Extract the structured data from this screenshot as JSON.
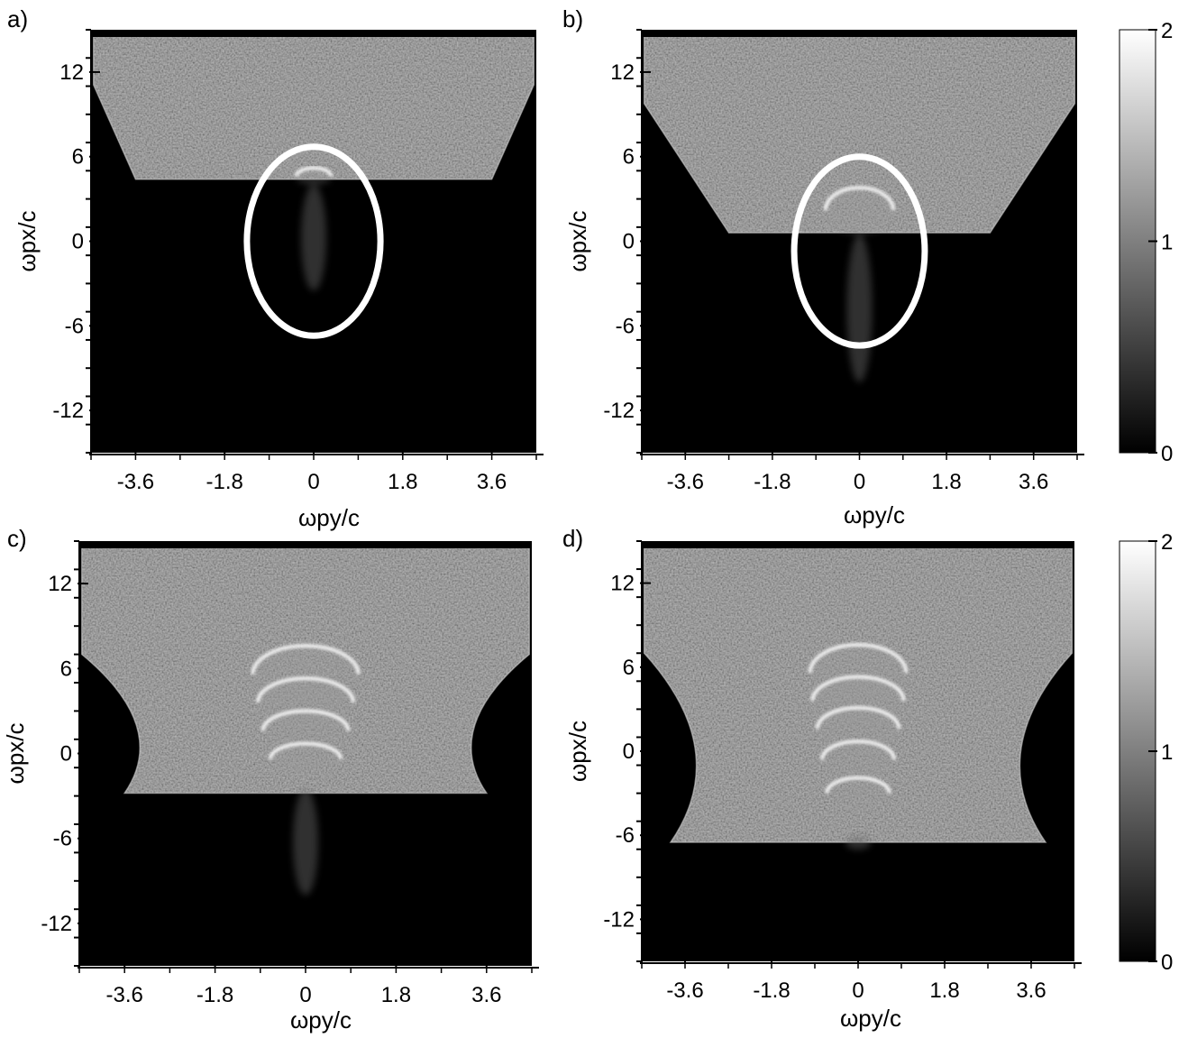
{
  "figure": {
    "colorbar_ticks": [
      "2",
      "1",
      "0"
    ]
  },
  "chart_data": [
    {
      "type": "heatmap",
      "panel_label": "a)",
      "xlabel": "ωpy/c",
      "ylabel": "ωpx/c",
      "x_ticks": [
        -3.6,
        -1.8,
        0,
        1.8,
        3.6
      ],
      "x_tick_labels": [
        "-3.6",
        "-1.8",
        "0",
        "1.8",
        "3.6"
      ],
      "y_ticks": [
        12,
        6,
        0,
        -6,
        -12
      ],
      "y_tick_labels": [
        "12",
        "6",
        "0",
        "-6",
        "-12"
      ],
      "xlim": [
        -4.5,
        4.5
      ],
      "ylim": [
        -15,
        15
      ],
      "colorbar": {
        "range": [
          0,
          2
        ],
        "ticks": [
          0,
          1,
          2
        ],
        "colormap": "gray"
      },
      "plasma_region": {
        "top": 14.7,
        "bottom": 4.4,
        "profile": "trapezoid",
        "half_width_top": 4.45,
        "half_width_bottom": 3.6
      },
      "rings": [
        {
          "y": 0,
          "x": 4.6,
          "ry": 0.35,
          "rx": 0.6
        }
      ],
      "wake_tail": {
        "from": 4.0,
        "to": -3.5
      },
      "ellipse_highlight": {
        "center": [
          0,
          0
        ],
        "half_width_y": 1.35,
        "half_height_x": 6.7
      }
    },
    {
      "type": "heatmap",
      "panel_label": "b)",
      "xlabel": "ωpy/c",
      "ylabel": "ωpx/c",
      "x_ticks": [
        -3.6,
        -1.8,
        0,
        1.8,
        3.6
      ],
      "x_tick_labels": [
        "-3.6",
        "-1.8",
        "0",
        "1.8",
        "3.6"
      ],
      "y_ticks": [
        12,
        6,
        0,
        -6,
        -12
      ],
      "y_tick_labels": [
        "12",
        "6",
        "0",
        "-6",
        "-12"
      ],
      "xlim": [
        -4.5,
        4.5
      ],
      "ylim": [
        -15,
        15
      ],
      "colorbar": {
        "range": [
          0,
          2
        ],
        "ticks": [
          0,
          1,
          2
        ],
        "colormap": "gray"
      },
      "plasma_region": {
        "top": 14.7,
        "bottom": 0.6,
        "profile": "trapezoid",
        "half_width_top": 4.45,
        "half_width_bottom": 2.7
      },
      "rings": [
        {
          "y": 0,
          "x": 2.2,
          "ry": 0.7,
          "rx": 1.6
        }
      ],
      "wake_tail": {
        "from": 0.5,
        "to": -10.0
      },
      "ellipse_highlight": {
        "center": [
          0,
          -0.7
        ],
        "half_width_y": 1.35,
        "half_height_x": 6.7
      }
    },
    {
      "type": "heatmap",
      "panel_label": "c)",
      "xlabel": "ωpy/c",
      "ylabel": "ωpx/c",
      "x_ticks": [
        -3.6,
        -1.8,
        0,
        1.8,
        3.6
      ],
      "x_tick_labels": [
        "-3.6",
        "-1.8",
        "0",
        "1.8",
        "3.6"
      ],
      "y_ticks": [
        12,
        6,
        0,
        -6,
        -12
      ],
      "y_tick_labels": [
        "12",
        "6",
        "0",
        "-6",
        "-12"
      ],
      "xlim": [
        -4.5,
        4.5
      ],
      "ylim": [
        -15,
        15
      ],
      "colorbar": {
        "range": [
          0,
          2
        ],
        "ticks": [
          0,
          1,
          2
        ],
        "colormap": "gray"
      },
      "plasma_region": {
        "top": 14.7,
        "bottom": -2.8,
        "profile": "waist",
        "half_width_top": 4.45,
        "half_width_waist": 2.9,
        "half_width_bottom": 3.6
      },
      "rings": [
        {
          "y": 0,
          "x": 5.6,
          "ry": 1.05,
          "rx": 2.0
        },
        {
          "y": 0,
          "x": 3.6,
          "ry": 0.95,
          "rx": 1.7
        },
        {
          "y": 0,
          "x": 1.6,
          "ry": 0.85,
          "rx": 1.4
        },
        {
          "y": 0,
          "x": -0.4,
          "ry": 0.7,
          "rx": 1.1
        }
      ],
      "wake_tail": {
        "from": -2.5,
        "to": -10.0
      }
    },
    {
      "type": "heatmap",
      "panel_label": "d)",
      "xlabel": "ωpy/c",
      "ylabel": "ωpx/c",
      "x_ticks": [
        -3.6,
        -1.8,
        0,
        1.8,
        3.6
      ],
      "x_tick_labels": [
        "-3.6",
        "-1.8",
        "0",
        "1.8",
        "3.6"
      ],
      "y_ticks": [
        12,
        6,
        0,
        -6,
        -12
      ],
      "y_tick_labels": [
        "12",
        "6",
        "0",
        "-6",
        "-12"
      ],
      "xlim": [
        -4.5,
        4.5
      ],
      "ylim": [
        -15,
        15
      ],
      "colorbar": {
        "range": [
          0,
          2
        ],
        "ticks": [
          0,
          1,
          2
        ],
        "colormap": "gray"
      },
      "plasma_region": {
        "top": 14.7,
        "bottom": -6.5,
        "profile": "waist",
        "half_width_top": 4.45,
        "half_width_waist": 2.8,
        "half_width_bottom": 3.9
      },
      "rings": [
        {
          "y": 0,
          "x": 5.6,
          "ry": 1.0,
          "rx": 2.0
        },
        {
          "y": 0,
          "x": 3.6,
          "ry": 0.95,
          "rx": 1.7
        },
        {
          "y": 0,
          "x": 1.6,
          "ry": 0.85,
          "rx": 1.5
        },
        {
          "y": 0,
          "x": -0.6,
          "ry": 0.75,
          "rx": 1.3
        },
        {
          "y": 0,
          "x": -3.0,
          "ry": 0.65,
          "rx": 1.1
        }
      ],
      "wake_tail": {
        "from": -6.0,
        "to": -7.0
      }
    }
  ]
}
